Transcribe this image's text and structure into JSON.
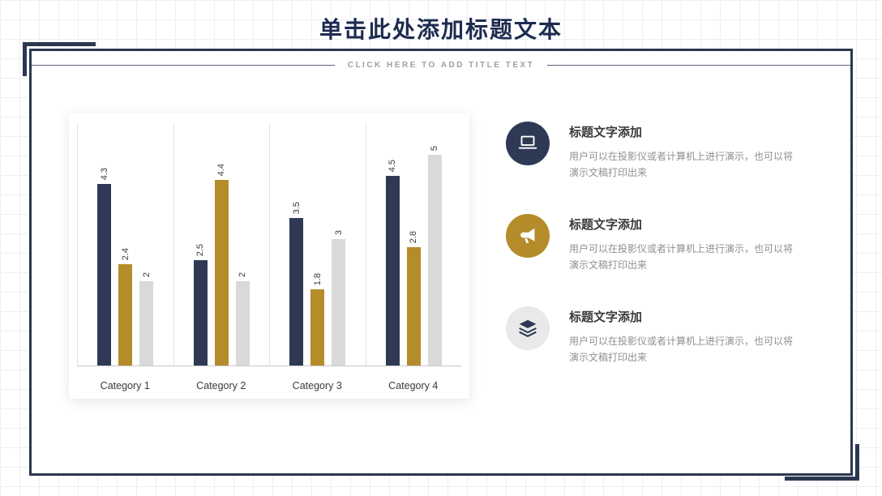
{
  "slide": {
    "title": "单击此处添加标题文本",
    "subtitle": "CLICK  HERE  TO  ADD  TITLE  TEXT"
  },
  "chart_data": {
    "type": "bar",
    "title": "",
    "categories": [
      "Category 1",
      "Category 2",
      "Category 3",
      "Category 4"
    ],
    "series": [
      {
        "name": "series-navy",
        "color": "#2e3a55",
        "values": [
          4.3,
          2.5,
          3.5,
          4.5
        ]
      },
      {
        "name": "series-gold",
        "color": "#b58c2a",
        "values": [
          2.4,
          4.4,
          1.8,
          2.8
        ]
      },
      {
        "name": "series-gray",
        "color": "#d9d9d9",
        "values": [
          2,
          2,
          3,
          5
        ]
      }
    ],
    "ylim": [
      0,
      5.5
    ],
    "value_labels_rotated": true,
    "legend": "none",
    "grid": "vertical-separators-only"
  },
  "items": [
    {
      "icon": "laptop-icon",
      "circle_color": "#2e3a55",
      "icon_color": "#ffffff",
      "title": "标题文字添加",
      "body": "用户可以在投影仪或者计算机上进行演示，也可以将演示文稿打印出来"
    },
    {
      "icon": "megaphone-icon",
      "circle_color": "#b58c2a",
      "icon_color": "#ffffff",
      "title": "标题文字添加",
      "body": "用户可以在投影仪或者计算机上进行演示，也可以将演示文稿打印出来"
    },
    {
      "icon": "layers-icon",
      "circle_color": "#e9e9e9",
      "icon_color": "#2e3a55",
      "title": "标题文字添加",
      "body": "用户可以在投影仪或者计算机上进行演示，也可以将演示文稿打印出来"
    }
  ],
  "colors": {
    "accent_navy": "#2b3850",
    "accent_gold": "#b58c2a",
    "title_text": "#1c2b4f",
    "subtitle_text": "#9aa1ab",
    "body_text": "#8f8f8f"
  }
}
